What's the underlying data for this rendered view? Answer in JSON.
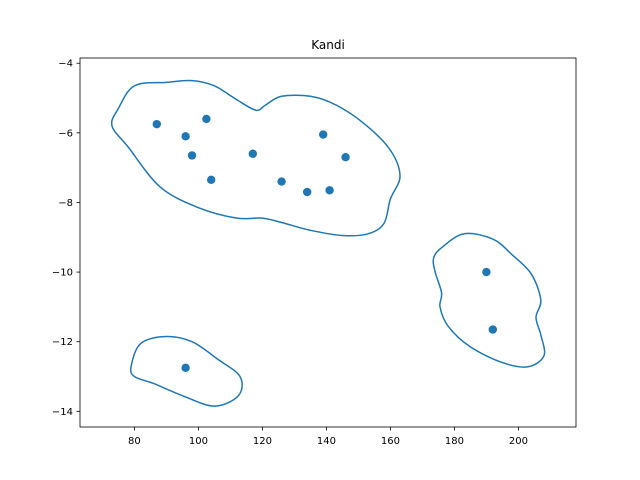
{
  "chart_data": {
    "type": "scatter",
    "title": "Kandi",
    "xlabel": "",
    "ylabel": "",
    "xlim": [
      63,
      218
    ],
    "ylim": [
      -14.45,
      -3.85
    ],
    "x_ticks": [
      80,
      100,
      120,
      140,
      160,
      180,
      200
    ],
    "y_ticks": [
      -14,
      -12,
      -10,
      -8,
      -6,
      -4
    ],
    "x_tick_labels": [
      "80",
      "100",
      "120",
      "140",
      "160",
      "180",
      "200"
    ],
    "y_tick_labels": [
      "−14",
      "−12",
      "−10",
      "−8",
      "−6",
      "−4"
    ],
    "grid": false,
    "color": "#1f77b4",
    "points": [
      {
        "x": 87,
        "y": -5.75
      },
      {
        "x": 96,
        "y": -6.1
      },
      {
        "x": 98,
        "y": -6.65
      },
      {
        "x": 102.5,
        "y": -5.6
      },
      {
        "x": 104,
        "y": -7.35
      },
      {
        "x": 117,
        "y": -6.6
      },
      {
        "x": 126,
        "y": -7.4
      },
      {
        "x": 134,
        "y": -7.7
      },
      {
        "x": 139,
        "y": -6.05
      },
      {
        "x": 141,
        "y": -7.65
      },
      {
        "x": 146,
        "y": -6.7
      },
      {
        "x": 190,
        "y": -10.0
      },
      {
        "x": 192,
        "y": -11.65
      },
      {
        "x": 96,
        "y": -12.75
      }
    ],
    "contours": [
      [
        [
          75,
          -5.3
        ],
        [
          80,
          -4.65
        ],
        [
          90,
          -4.55
        ],
        [
          98,
          -4.5
        ],
        [
          105,
          -4.65
        ],
        [
          112,
          -5.05
        ],
        [
          118,
          -5.35
        ],
        [
          121,
          -5.2
        ],
        [
          126,
          -4.95
        ],
        [
          135,
          -4.95
        ],
        [
          143,
          -5.2
        ],
        [
          152,
          -5.75
        ],
        [
          160,
          -6.5
        ],
        [
          163,
          -7.25
        ],
        [
          160,
          -7.9
        ],
        [
          158,
          -8.6
        ],
        [
          153,
          -8.9
        ],
        [
          145,
          -8.95
        ],
        [
          135,
          -8.8
        ],
        [
          127,
          -8.6
        ],
        [
          120,
          -8.45
        ],
        [
          112,
          -8.45
        ],
        [
          100,
          -8.15
        ],
        [
          88,
          -7.55
        ],
        [
          78,
          -6.4
        ],
        [
          73,
          -5.8
        ]
      ],
      [
        [
          176,
          -9.3
        ],
        [
          183,
          -8.9
        ],
        [
          192,
          -9.05
        ],
        [
          198,
          -9.5
        ],
        [
          204,
          -10.05
        ],
        [
          207,
          -10.8
        ],
        [
          205.5,
          -11.3
        ],
        [
          207,
          -11.8
        ],
        [
          208,
          -12.4
        ],
        [
          203,
          -12.72
        ],
        [
          195,
          -12.6
        ],
        [
          185,
          -12.15
        ],
        [
          178,
          -11.55
        ],
        [
          175.5,
          -11.0
        ],
        [
          176,
          -10.6
        ],
        [
          174,
          -10.0
        ],
        [
          173.5,
          -9.6
        ]
      ],
      [
        [
          79,
          -12.7
        ],
        [
          82,
          -12.05
        ],
        [
          90,
          -11.85
        ],
        [
          98,
          -12.0
        ],
        [
          106,
          -12.5
        ],
        [
          113,
          -13.0
        ],
        [
          112.5,
          -13.55
        ],
        [
          105,
          -13.85
        ],
        [
          95,
          -13.55
        ],
        [
          86,
          -13.2
        ],
        [
          80,
          -13.0
        ]
      ]
    ]
  }
}
